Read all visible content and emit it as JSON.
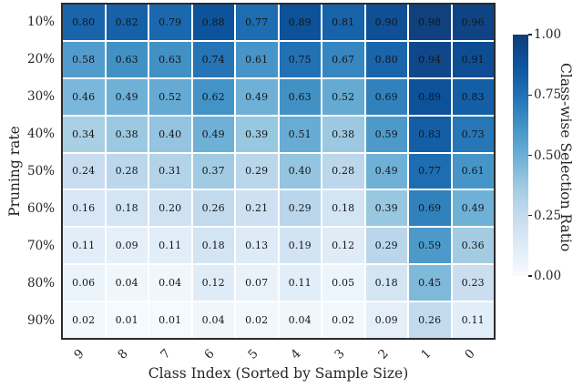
{
  "figure": {
    "background_color": "#ffffff",
    "border_color": "#2b2b2b",
    "text_color": "#262626"
  },
  "chart_data": {
    "type": "heatmap",
    "title": "",
    "xlabel": "Class Index (Sorted by Sample Size)",
    "ylabel": "Pruning rate",
    "x_ticklabels": [
      "9",
      "8",
      "7",
      "6",
      "5",
      "4",
      "3",
      "2",
      "1",
      "0"
    ],
    "y_ticklabels": [
      "10%",
      "20%",
      "30%",
      "40%",
      "50%",
      "60%",
      "70%",
      "80%",
      "90%"
    ],
    "values": [
      [
        "0.80",
        "0.82",
        "0.79",
        "0.88",
        "0.77",
        "0.89",
        "0.81",
        "0.90",
        "0.98",
        "0.96"
      ],
      [
        "0.58",
        "0.63",
        "0.63",
        "0.74",
        "0.61",
        "0.75",
        "0.67",
        "0.80",
        "0.94",
        "0.91"
      ],
      [
        "0.46",
        "0.49",
        "0.52",
        "0.62",
        "0.49",
        "0.63",
        "0.52",
        "0.69",
        "0.89",
        "0.83"
      ],
      [
        "0.34",
        "0.38",
        "0.40",
        "0.49",
        "0.39",
        "0.51",
        "0.38",
        "0.59",
        "0.83",
        "0.73"
      ],
      [
        "0.24",
        "0.28",
        "0.31",
        "0.37",
        "0.29",
        "0.40",
        "0.28",
        "0.49",
        "0.77",
        "0.61"
      ],
      [
        "0.16",
        "0.18",
        "0.20",
        "0.26",
        "0.21",
        "0.29",
        "0.18",
        "0.39",
        "0.69",
        "0.49"
      ],
      [
        "0.11",
        "0.09",
        "0.11",
        "0.18",
        "0.13",
        "0.19",
        "0.12",
        "0.29",
        "0.59",
        "0.36"
      ],
      [
        "0.06",
        "0.04",
        "0.04",
        "0.12",
        "0.07",
        "0.11",
        "0.05",
        "0.18",
        "0.45",
        "0.23"
      ],
      [
        "0.02",
        "0.01",
        "0.01",
        "0.04",
        "0.02",
        "0.04",
        "0.02",
        "0.09",
        "0.26",
        "0.11"
      ]
    ],
    "vmin": 0.0,
    "vmax": 1.0,
    "colormap": "Blues",
    "colormap_stops": [
      {
        "t": 0.0,
        "hex": "#f7fbff"
      },
      {
        "t": 0.125,
        "hex": "#deebf7"
      },
      {
        "t": 0.25,
        "hex": "#c6dbef"
      },
      {
        "t": 0.375,
        "hex": "#9ecae1"
      },
      {
        "t": 0.5,
        "hex": "#6baed6"
      },
      {
        "t": 0.625,
        "hex": "#4292c6"
      },
      {
        "t": 0.75,
        "hex": "#2171b5"
      },
      {
        "t": 0.875,
        "hex": "#0d549e"
      },
      {
        "t": 1.0,
        "hex": "#103c78"
      }
    ],
    "grid_line_color": "#ffffff",
    "cell_text_color": "#151515",
    "legend_position": "right",
    "colorbar": {
      "label": "Class-wise Selection Ratio",
      "tick_labels": [
        "1.00",
        "0.75",
        "0.50",
        "0.25",
        "0.00"
      ],
      "tick_values": [
        1.0,
        0.75,
        0.5,
        0.25,
        0.0
      ]
    }
  }
}
